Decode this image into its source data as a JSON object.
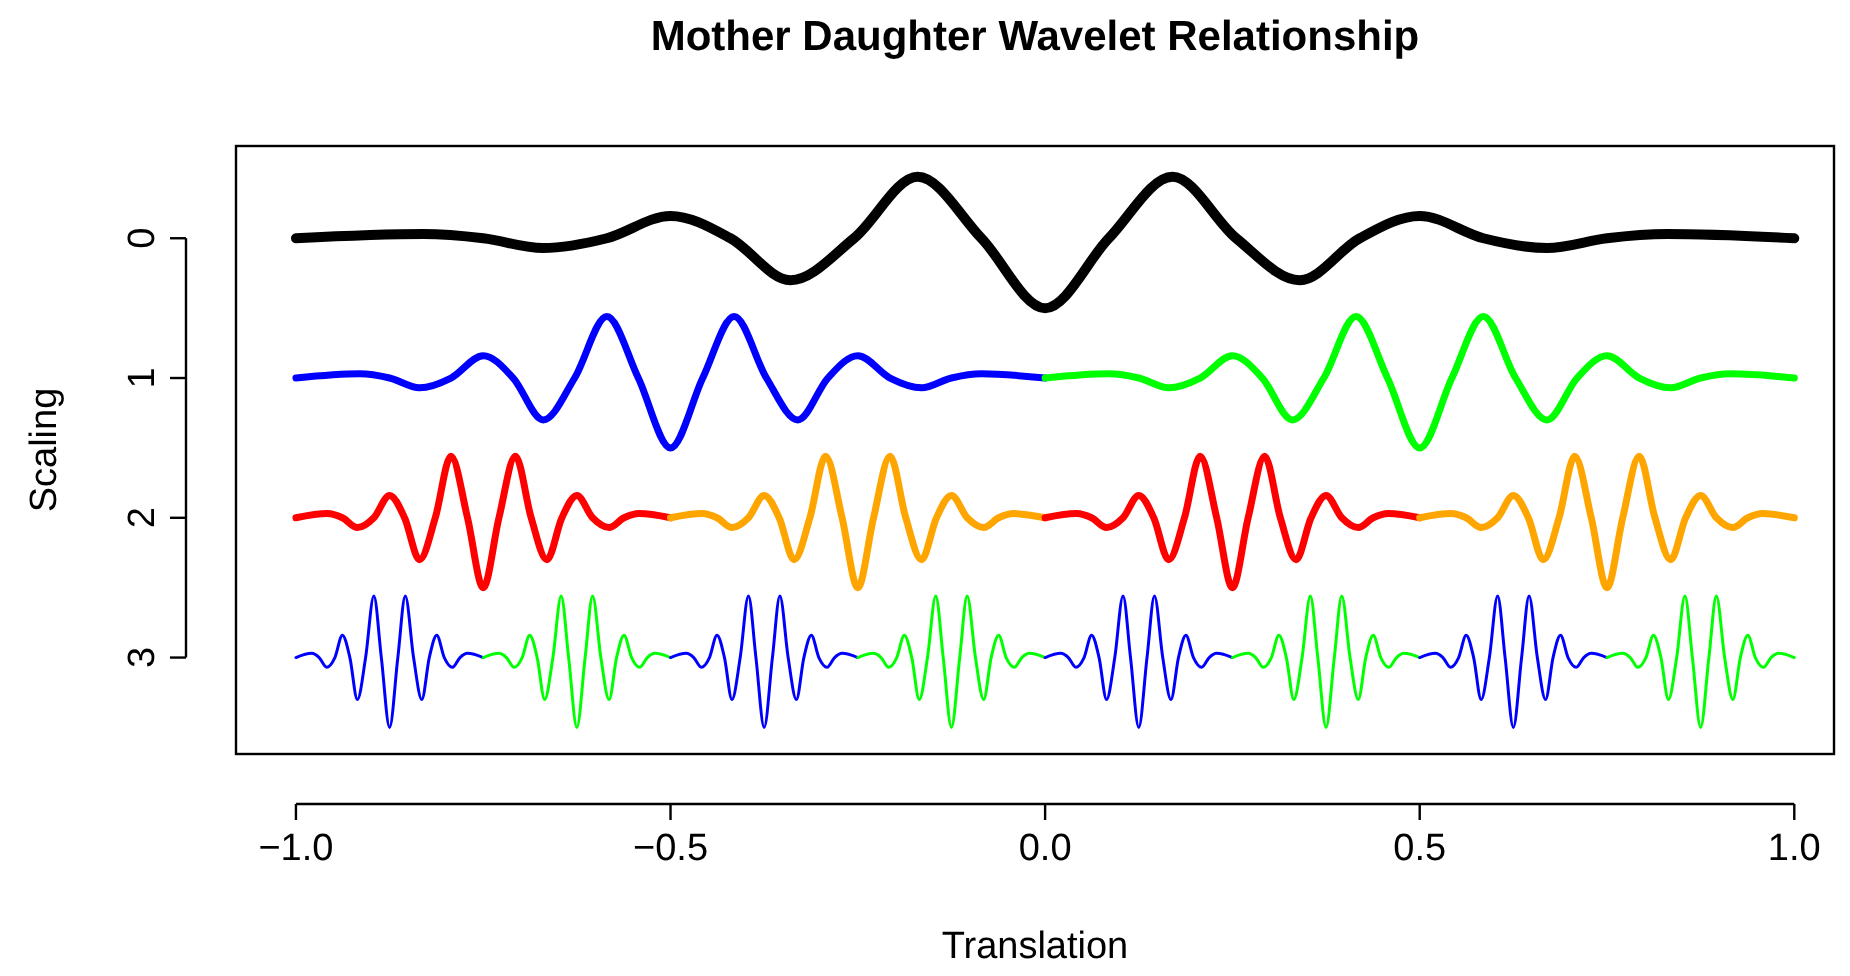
{
  "chart_data": {
    "type": "line",
    "title": "Mother Daughter Wavelet Relationship",
    "xlabel": "Translation",
    "ylabel": "Scaling",
    "xlim": [
      -1.08,
      1.053
    ],
    "ylim": [
      3.69,
      -0.66
    ],
    "xticks": [
      {
        "value": -1,
        "label": "−1.0"
      },
      {
        "value": -0.5,
        "label": "−0.5"
      },
      {
        "value": 0,
        "label": "0.0"
      },
      {
        "value": 0.5,
        "label": "0.5"
      },
      {
        "value": 1,
        "label": "1.0"
      }
    ],
    "yticks": [
      0,
      1,
      2,
      3
    ],
    "series": [
      {
        "color": "#000000",
        "x": [
          -1,
          -0.83,
          -0.75,
          -0.67,
          -0.585,
          -0.5,
          -0.42,
          -0.34,
          -0.255,
          -0.17,
          -0.085,
          0,
          0.085,
          0.17,
          0.255,
          0.34,
          0.42,
          0.5,
          0.585,
          0.67,
          0.75,
          0.83,
          1
        ],
        "values": [
          0,
          -0.03,
          0,
          0.07,
          0,
          -0.16,
          0,
          0.3,
          0,
          -0.44,
          0,
          0.5,
          0,
          -0.44,
          0,
          0.3,
          0,
          -0.16,
          0,
          0.07,
          0,
          -0.03,
          0
        ]
      },
      {
        "color": "#0000ff",
        "x": [
          -1,
          -0.915,
          -0.875,
          -0.835,
          -0.793,
          -0.75,
          -0.71,
          -0.67,
          -0.628,
          -0.585,
          -0.543,
          -0.5,
          -0.457,
          -0.415,
          -0.372,
          -0.33,
          -0.29,
          -0.25,
          -0.207,
          -0.165,
          -0.125,
          -0.085,
          0
        ],
        "values": [
          1,
          0.97,
          1,
          1.07,
          1,
          0.84,
          1,
          1.3,
          1,
          0.56,
          1,
          1.5,
          1,
          0.56,
          1,
          1.3,
          1,
          0.84,
          1,
          1.07,
          1,
          0.97,
          1
        ]
      },
      {
        "color": "#00ff00",
        "x": [
          0,
          0.085,
          0.125,
          0.165,
          0.207,
          0.25,
          0.29,
          0.33,
          0.372,
          0.415,
          0.457,
          0.5,
          0.543,
          0.585,
          0.628,
          0.67,
          0.71,
          0.75,
          0.793,
          0.835,
          0.875,
          0.915,
          1
        ],
        "values": [
          1,
          0.97,
          1,
          1.07,
          1,
          0.84,
          1,
          1.3,
          1,
          0.56,
          1,
          1.5,
          1,
          0.56,
          1,
          1.3,
          1,
          0.84,
          1,
          1.07,
          1,
          0.97,
          1
        ]
      },
      {
        "color": "#ff0000",
        "x": [
          -1,
          -0.958,
          -0.938,
          -0.918,
          -0.896,
          -0.875,
          -0.855,
          -0.835,
          -0.814,
          -0.793,
          -0.771,
          -0.75,
          -0.729,
          -0.707,
          -0.686,
          -0.665,
          -0.645,
          -0.625,
          -0.604,
          -0.582,
          -0.562,
          -0.542,
          -0.5
        ],
        "values": [
          2,
          1.97,
          2,
          2.07,
          2,
          1.84,
          2,
          2.3,
          2,
          1.56,
          2,
          2.5,
          2,
          1.56,
          2,
          2.3,
          2,
          1.84,
          2,
          2.07,
          2,
          1.97,
          2
        ]
      },
      {
        "color": "#ffa500",
        "x": [
          -0.5,
          -0.458,
          -0.438,
          -0.418,
          -0.396,
          -0.375,
          -0.355,
          -0.335,
          -0.314,
          -0.293,
          -0.271,
          -0.25,
          -0.229,
          -0.207,
          -0.186,
          -0.165,
          -0.145,
          -0.125,
          -0.104,
          -0.082,
          -0.062,
          -0.042,
          0
        ],
        "values": [
          2,
          1.97,
          2,
          2.07,
          2,
          1.84,
          2,
          2.3,
          2,
          1.56,
          2,
          2.5,
          2,
          1.56,
          2,
          2.3,
          2,
          1.84,
          2,
          2.07,
          2,
          1.97,
          2
        ]
      },
      {
        "color": "#ff0000",
        "x": [
          0,
          0.042,
          0.062,
          0.082,
          0.104,
          0.125,
          0.145,
          0.165,
          0.186,
          0.207,
          0.229,
          0.25,
          0.271,
          0.293,
          0.314,
          0.335,
          0.355,
          0.375,
          0.396,
          0.418,
          0.438,
          0.458,
          0.5
        ],
        "values": [
          2,
          1.97,
          2,
          2.07,
          2,
          1.84,
          2,
          2.3,
          2,
          1.56,
          2,
          2.5,
          2,
          1.56,
          2,
          2.3,
          2,
          1.84,
          2,
          2.07,
          2,
          1.97,
          2
        ]
      },
      {
        "color": "#ffa500",
        "x": [
          0.5,
          0.542,
          0.562,
          0.582,
          0.604,
          0.625,
          0.645,
          0.665,
          0.686,
          0.707,
          0.729,
          0.75,
          0.771,
          0.793,
          0.814,
          0.835,
          0.855,
          0.875,
          0.896,
          0.918,
          0.938,
          0.958,
          1
        ],
        "values": [
          2,
          1.97,
          2,
          2.07,
          2,
          1.84,
          2,
          2.3,
          2,
          1.56,
          2,
          2.5,
          2,
          1.56,
          2,
          2.3,
          2,
          1.84,
          2,
          2.07,
          2,
          1.97,
          2
        ]
      },
      {
        "color": "#0000ff",
        "x": [
          -1,
          -0.979,
          -0.969,
          -0.959,
          -0.948,
          -0.938,
          -0.928,
          -0.918,
          -0.907,
          -0.896,
          -0.886,
          -0.875,
          -0.864,
          -0.854,
          -0.843,
          -0.832,
          -0.822,
          -0.812,
          -0.802,
          -0.791,
          -0.781,
          -0.771,
          -0.75
        ],
        "values": [
          3,
          2.97,
          3,
          3.07,
          3,
          2.84,
          3,
          3.3,
          3,
          2.56,
          3,
          3.5,
          3,
          2.56,
          3,
          3.3,
          3,
          2.84,
          3,
          3.07,
          3,
          2.97,
          3
        ]
      },
      {
        "color": "#00ff00",
        "x": [
          -0.75,
          -0.729,
          -0.719,
          -0.709,
          -0.698,
          -0.688,
          -0.678,
          -0.668,
          -0.657,
          -0.646,
          -0.636,
          -0.625,
          -0.614,
          -0.604,
          -0.593,
          -0.582,
          -0.572,
          -0.562,
          -0.552,
          -0.541,
          -0.531,
          -0.521,
          -0.5
        ],
        "values": [
          3,
          2.97,
          3,
          3.07,
          3,
          2.84,
          3,
          3.3,
          3,
          2.56,
          3,
          3.5,
          3,
          2.56,
          3,
          3.3,
          3,
          2.84,
          3,
          3.07,
          3,
          2.97,
          3
        ]
      },
      {
        "color": "#0000ff",
        "x": [
          -0.5,
          -0.479,
          -0.469,
          -0.459,
          -0.448,
          -0.438,
          -0.428,
          -0.418,
          -0.407,
          -0.396,
          -0.386,
          -0.375,
          -0.364,
          -0.354,
          -0.343,
          -0.332,
          -0.322,
          -0.312,
          -0.302,
          -0.291,
          -0.281,
          -0.271,
          -0.25
        ],
        "values": [
          3,
          2.97,
          3,
          3.07,
          3,
          2.84,
          3,
          3.3,
          3,
          2.56,
          3,
          3.5,
          3,
          2.56,
          3,
          3.3,
          3,
          2.84,
          3,
          3.07,
          3,
          2.97,
          3
        ]
      },
      {
        "color": "#00ff00",
        "x": [
          -0.25,
          -0.229,
          -0.219,
          -0.209,
          -0.198,
          -0.188,
          -0.178,
          -0.168,
          -0.157,
          -0.146,
          -0.136,
          -0.125,
          -0.114,
          -0.104,
          -0.093,
          -0.082,
          -0.072,
          -0.062,
          -0.052,
          -0.041,
          -0.031,
          -0.021,
          0
        ],
        "values": [
          3,
          2.97,
          3,
          3.07,
          3,
          2.84,
          3,
          3.3,
          3,
          2.56,
          3,
          3.5,
          3,
          2.56,
          3,
          3.3,
          3,
          2.84,
          3,
          3.07,
          3,
          2.97,
          3
        ]
      },
      {
        "color": "#0000ff",
        "x": [
          0,
          0.021,
          0.031,
          0.041,
          0.052,
          0.062,
          0.072,
          0.082,
          0.093,
          0.104,
          0.114,
          0.125,
          0.136,
          0.146,
          0.157,
          0.168,
          0.178,
          0.188,
          0.198,
          0.209,
          0.219,
          0.229,
          0.25
        ],
        "values": [
          3,
          2.97,
          3,
          3.07,
          3,
          2.84,
          3,
          3.3,
          3,
          2.56,
          3,
          3.5,
          3,
          2.56,
          3,
          3.3,
          3,
          2.84,
          3,
          3.07,
          3,
          2.97,
          3
        ]
      },
      {
        "color": "#00ff00",
        "x": [
          0.25,
          0.271,
          0.281,
          0.291,
          0.302,
          0.312,
          0.322,
          0.332,
          0.343,
          0.354,
          0.364,
          0.375,
          0.386,
          0.396,
          0.407,
          0.418,
          0.428,
          0.438,
          0.448,
          0.459,
          0.469,
          0.479,
          0.5
        ],
        "values": [
          3,
          2.97,
          3,
          3.07,
          3,
          2.84,
          3,
          3.3,
          3,
          2.56,
          3,
          3.5,
          3,
          2.56,
          3,
          3.3,
          3,
          2.84,
          3,
          3.07,
          3,
          2.97,
          3
        ]
      },
      {
        "color": "#0000ff",
        "x": [
          0.5,
          0.521,
          0.531,
          0.541,
          0.552,
          0.562,
          0.572,
          0.582,
          0.593,
          0.604,
          0.614,
          0.625,
          0.636,
          0.646,
          0.657,
          0.668,
          0.678,
          0.688,
          0.698,
          0.709,
          0.719,
          0.729,
          0.75
        ],
        "values": [
          3,
          2.97,
          3,
          3.07,
          3,
          2.84,
          3,
          3.3,
          3,
          2.56,
          3,
          3.5,
          3,
          2.56,
          3,
          3.3,
          3,
          2.84,
          3,
          3.07,
          3,
          2.97,
          3
        ]
      },
      {
        "color": "#00ff00",
        "x": [
          0.75,
          0.771,
          0.781,
          0.791,
          0.802,
          0.812,
          0.822,
          0.832,
          0.843,
          0.854,
          0.864,
          0.875,
          0.886,
          0.896,
          0.907,
          0.918,
          0.928,
          0.938,
          0.948,
          0.959,
          0.969,
          0.979,
          1
        ],
        "values": [
          3,
          2.97,
          3,
          3.07,
          3,
          2.84,
          3,
          3.3,
          3,
          2.56,
          3,
          3.5,
          3,
          2.56,
          3,
          3.3,
          3,
          2.84,
          3,
          3.07,
          3,
          2.97,
          3
        ]
      }
    ]
  }
}
